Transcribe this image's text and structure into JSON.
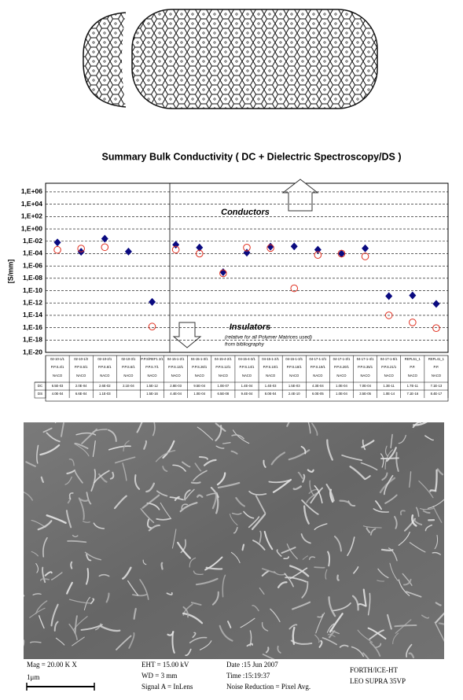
{
  "chart_data": {
    "type": "scatter",
    "title": "Summary Bulk Conductivity ( DC + Dielectric Spectroscopy/DS )",
    "y_label": "[S/mm]",
    "log": true,
    "grid": true,
    "annotations": [
      "Conductors",
      "Insulators",
      "(relative for all Polymer Matrices used)",
      "from bibliography"
    ],
    "categories": [
      "02-10-1/1",
      "02-10-1/2",
      "02-10-2/1",
      "02-10-3/1",
      "P.P.S/REF1 2/1",
      "04-15-1-2/1",
      "04-15-1-3/1",
      "04-15-4-2/1",
      "04-15-4-3/1",
      "04-15-1-2/1",
      "04-15-1-3/1",
      "04-17-1-2/1",
      "04-17-1-3/1",
      "04-17-1-4/1",
      "04-17-1-5/1",
      "REFL51_1",
      "REFL41_1"
    ],
    "samples": [
      "P.P.S.4/1",
      "P.P.S.5/1",
      "P.P.S.6/1",
      "P.P.S.6/1",
      "P.P.S.7/1",
      "P.P.S.13/1",
      "P.P.S.26/1",
      "P.P.S.12/1",
      "P.P.S.14/1",
      "P.P.S.10/1",
      "P.P.S.18/1",
      "P.P.S.19/1",
      "P.P.S.20/1",
      "P.P.S.35/1",
      "P.P.S.21/1",
      "P.P.",
      "P.P."
    ],
    "matrices": [
      "NACO",
      "NACO",
      "NACO",
      "NACO",
      "NACO",
      "NACO",
      "NACO",
      "NACO",
      "NACO",
      "NACO",
      "NACO",
      "NACO",
      "NACO",
      "NACO",
      "NACO",
      "NACO",
      "NACO"
    ],
    "series": [
      {
        "name": "DC",
        "color": "#0a0a80",
        "marker": "diamond",
        "values": [
          0.0065,
          0.0002,
          0.026,
          0.00021,
          1.5e-12,
          0.0028,
          0.00095,
          1e-07,
          0.00014,
          0.0014,
          0.0015,
          0.00043,
          0.0001,
          0.0007,
          1.3e-11,
          1.7e-11,
          7.1e-13
        ],
        "value_labels": [
          "6.5E-03",
          "2.0E-04",
          "2.6E-02",
          "2.1E-04",
          "1.5E-12",
          "2.8E-03",
          "9.5E-04",
          "1.0E-07",
          "1.4E-04",
          "1.4E-03",
          "1.5E-03",
          "4.3E-04",
          "1.0E-04",
          "7.0E-04",
          "1.3E-11",
          "1.7E-11",
          "7.1E-13"
        ]
      },
      {
        "name": "DS",
        "color": "#e03020",
        "marker": "circle-open",
        "values": [
          0.0004,
          0.00066,
          0.0011,
          null,
          1.5e-16,
          0.00044,
          0.0001,
          6.5e-08,
          0.00094,
          0.0008,
          2.4e-10,
          6e-05,
          0.0001,
          3.5e-05,
          1e-14,
          7.1e-16,
          8.4e-17
        ],
        "value_labels": [
          "4.0E-04",
          "6.6E-04",
          "1.1E-03",
          null,
          "1.5E-16",
          "4.4E-04",
          "1.0E-04",
          "6.5E-08",
          "9.4E-04",
          "8.0E-04",
          "2.4E-10",
          "6.0E-05",
          "1.0E-04",
          "3.5E-05",
          "1.0E-14",
          "7.1E-16",
          "8.4E-17"
        ]
      }
    ],
    "ylim": [
      1e-20,
      25000000.0
    ],
    "yticks": [
      {
        "value": 1000000.0,
        "label": "1,E+06"
      },
      {
        "value": 10000.0,
        "label": "1,E+04"
      },
      {
        "value": 100.0,
        "label": "1,E+02"
      },
      {
        "value": 1,
        "label": "1,E+00"
      },
      {
        "value": 0.01,
        "label": "1,E-02"
      },
      {
        "value": 0.0001,
        "label": "1,E-04"
      },
      {
        "value": 1e-06,
        "label": "1,E-06"
      },
      {
        "value": 1e-08,
        "label": "1,E-08"
      },
      {
        "value": 1e-10,
        "label": "1,E-10"
      },
      {
        "value": 1e-12,
        "label": "1,E-12"
      },
      {
        "value": 1e-14,
        "label": "1,E-14"
      },
      {
        "value": 1e-16,
        "label": "1,E-16"
      },
      {
        "value": 1e-18,
        "label": "1,E-18"
      },
      {
        "value": 1e-20,
        "label": "1,E-20"
      }
    ]
  },
  "sem_info": {
    "mag": "Mag = 20.00 K X",
    "scale": "1μm",
    "eht": "EHT = 15.00 kV",
    "wd": "WD =  3 mm",
    "signal": "Signal A = InLens",
    "date": "Date :15 Jun 2007",
    "time": "Time :15:19:37",
    "noise": "Noise Reduction = Pixel Avg.",
    "lab": "FORTH/ICE-HT",
    "instrument": "LEO SUPRA 35VP"
  }
}
